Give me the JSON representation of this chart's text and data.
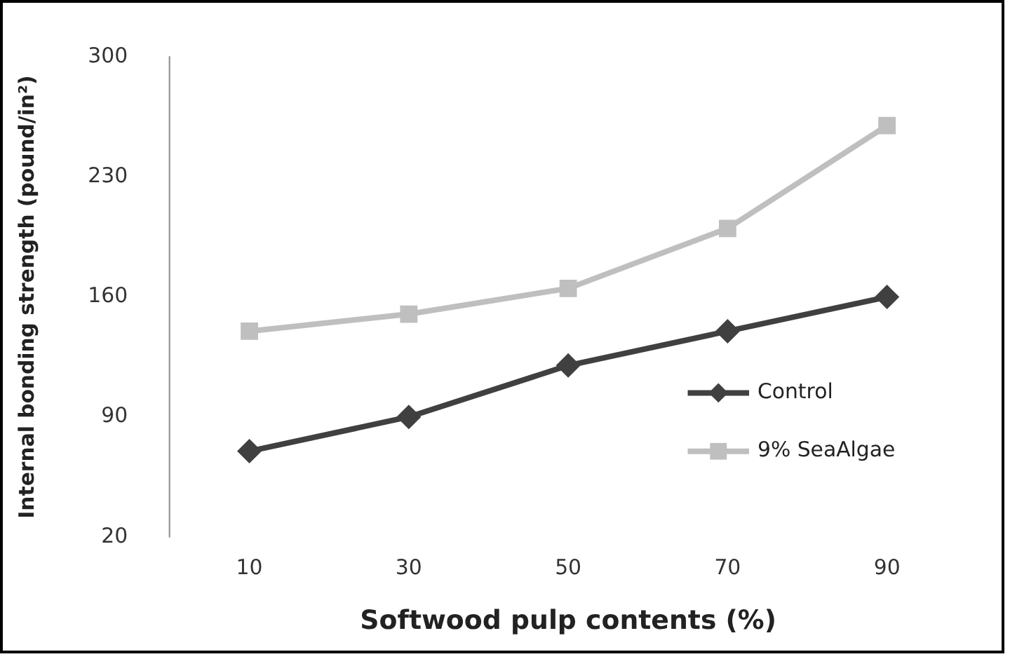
{
  "chart_data": {
    "type": "line",
    "xlabel": "Softwood pulp contents (%)",
    "ylabel": "Internal bonding strength (pound/in²)",
    "categories": [
      "10",
      "30",
      "50",
      "70",
      "90"
    ],
    "series": [
      {
        "name": "Control",
        "color": "#404040",
        "marker": "diamond",
        "values": [
          70,
          90,
          120,
          140,
          160
        ]
      },
      {
        "name": "9% SeaAlgae",
        "color": "#bfbfbf",
        "marker": "square",
        "values": [
          140,
          150,
          165,
          200,
          260
        ]
      }
    ],
    "ylim": [
      20,
      300
    ],
    "yticks": [
      20,
      90,
      160,
      230,
      300
    ],
    "grid": false,
    "legend": "right",
    "line_style": "solid"
  }
}
